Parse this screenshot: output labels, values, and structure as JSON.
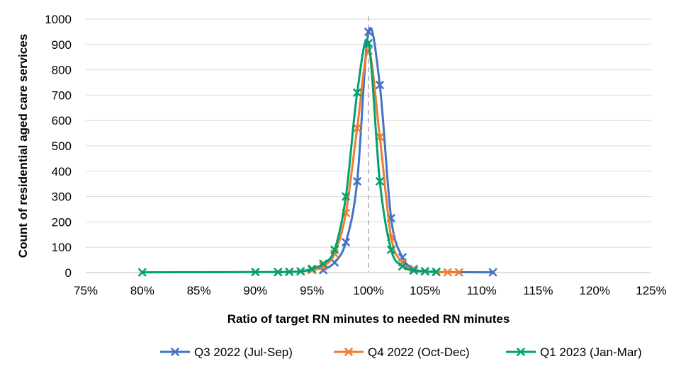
{
  "chart_data": {
    "type": "scatter",
    "xlabel": "Ratio of target RN minutes to needed RN minutes",
    "ylabel": "Count of residential aged care services",
    "xlim": [
      75,
      125
    ],
    "ylim": [
      0,
      1000
    ],
    "x_ticks": [
      "75%",
      "80%",
      "85%",
      "90%",
      "95%",
      "100%",
      "105%",
      "110%",
      "115%",
      "120%",
      "125%"
    ],
    "y_ticks": [
      "0",
      "100",
      "200",
      "300",
      "400",
      "500",
      "600",
      "700",
      "800",
      "900",
      "1000"
    ],
    "grid": true,
    "reference_line_x": 100,
    "legend_position": "bottom",
    "series": [
      {
        "name": "Q3 2022 (Jul-Sep)",
        "color": "#4472C4",
        "points": [
          [
            96,
            10
          ],
          [
            97,
            40
          ],
          [
            98,
            120
          ],
          [
            99,
            360
          ],
          [
            100,
            950
          ],
          [
            101,
            740
          ],
          [
            102,
            215
          ],
          [
            103,
            60
          ],
          [
            104,
            15
          ],
          [
            105,
            5
          ],
          [
            106,
            2
          ],
          [
            111,
            1
          ]
        ]
      },
      {
        "name": "Q4 2022 (Oct-Dec)",
        "color": "#ED7D31",
        "points": [
          [
            92,
            2
          ],
          [
            93,
            3
          ],
          [
            94,
            5
          ],
          [
            95,
            10
          ],
          [
            96,
            25
          ],
          [
            97,
            75
          ],
          [
            98,
            235
          ],
          [
            99,
            570
          ],
          [
            100,
            875
          ],
          [
            101,
            535
          ],
          [
            102,
            140
          ],
          [
            103,
            40
          ],
          [
            104,
            12
          ],
          [
            105,
            5
          ],
          [
            106,
            3
          ],
          [
            107,
            1
          ],
          [
            108,
            1
          ]
        ]
      },
      {
        "name": "Q1 2023 (Jan-Mar)",
        "color": "#00A170",
        "points": [
          [
            80,
            1
          ],
          [
            90,
            2
          ],
          [
            92,
            2
          ],
          [
            93,
            3
          ],
          [
            94,
            5
          ],
          [
            95,
            15
          ],
          [
            96,
            35
          ],
          [
            97,
            90
          ],
          [
            98,
            300
          ],
          [
            99,
            710
          ],
          [
            100,
            905
          ],
          [
            101,
            360
          ],
          [
            102,
            90
          ],
          [
            103,
            25
          ],
          [
            104,
            8
          ],
          [
            105,
            5
          ],
          [
            106,
            3
          ]
        ]
      }
    ]
  }
}
